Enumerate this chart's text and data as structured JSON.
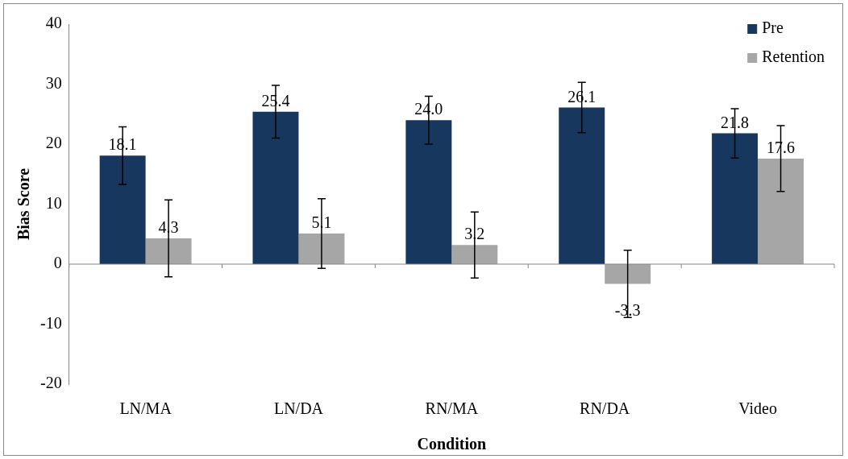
{
  "chart_data": {
    "type": "bar",
    "xlabel": "Condition",
    "ylabel": "Bias Score",
    "categories": [
      "LN/MA",
      "LN/DA",
      "RN/MA",
      "RN/DA",
      "Video"
    ],
    "series": [
      {
        "name": "Pre",
        "color": "#17375e",
        "values": [
          18.1,
          25.4,
          24.0,
          26.1,
          21.8
        ],
        "value_labels": [
          "18.1",
          "25.4",
          "24.0",
          "26.1",
          "21.8"
        ],
        "errors": [
          4.8,
          4.4,
          4.0,
          4.2,
          4.1
        ]
      },
      {
        "name": "Retention",
        "color": "#a6a6a6",
        "values": [
          4.3,
          5.1,
          3.2,
          -3.3,
          17.6
        ],
        "value_labels": [
          "4.3",
          "5.1",
          "3.2",
          "-3.3",
          "17.6"
        ],
        "errors": [
          6.4,
          5.8,
          5.5,
          5.6,
          5.5
        ]
      }
    ],
    "ylim": [
      -20,
      40
    ],
    "yticks": [
      -20,
      -10,
      0,
      10,
      20,
      30,
      40
    ],
    "legend": "top right"
  }
}
